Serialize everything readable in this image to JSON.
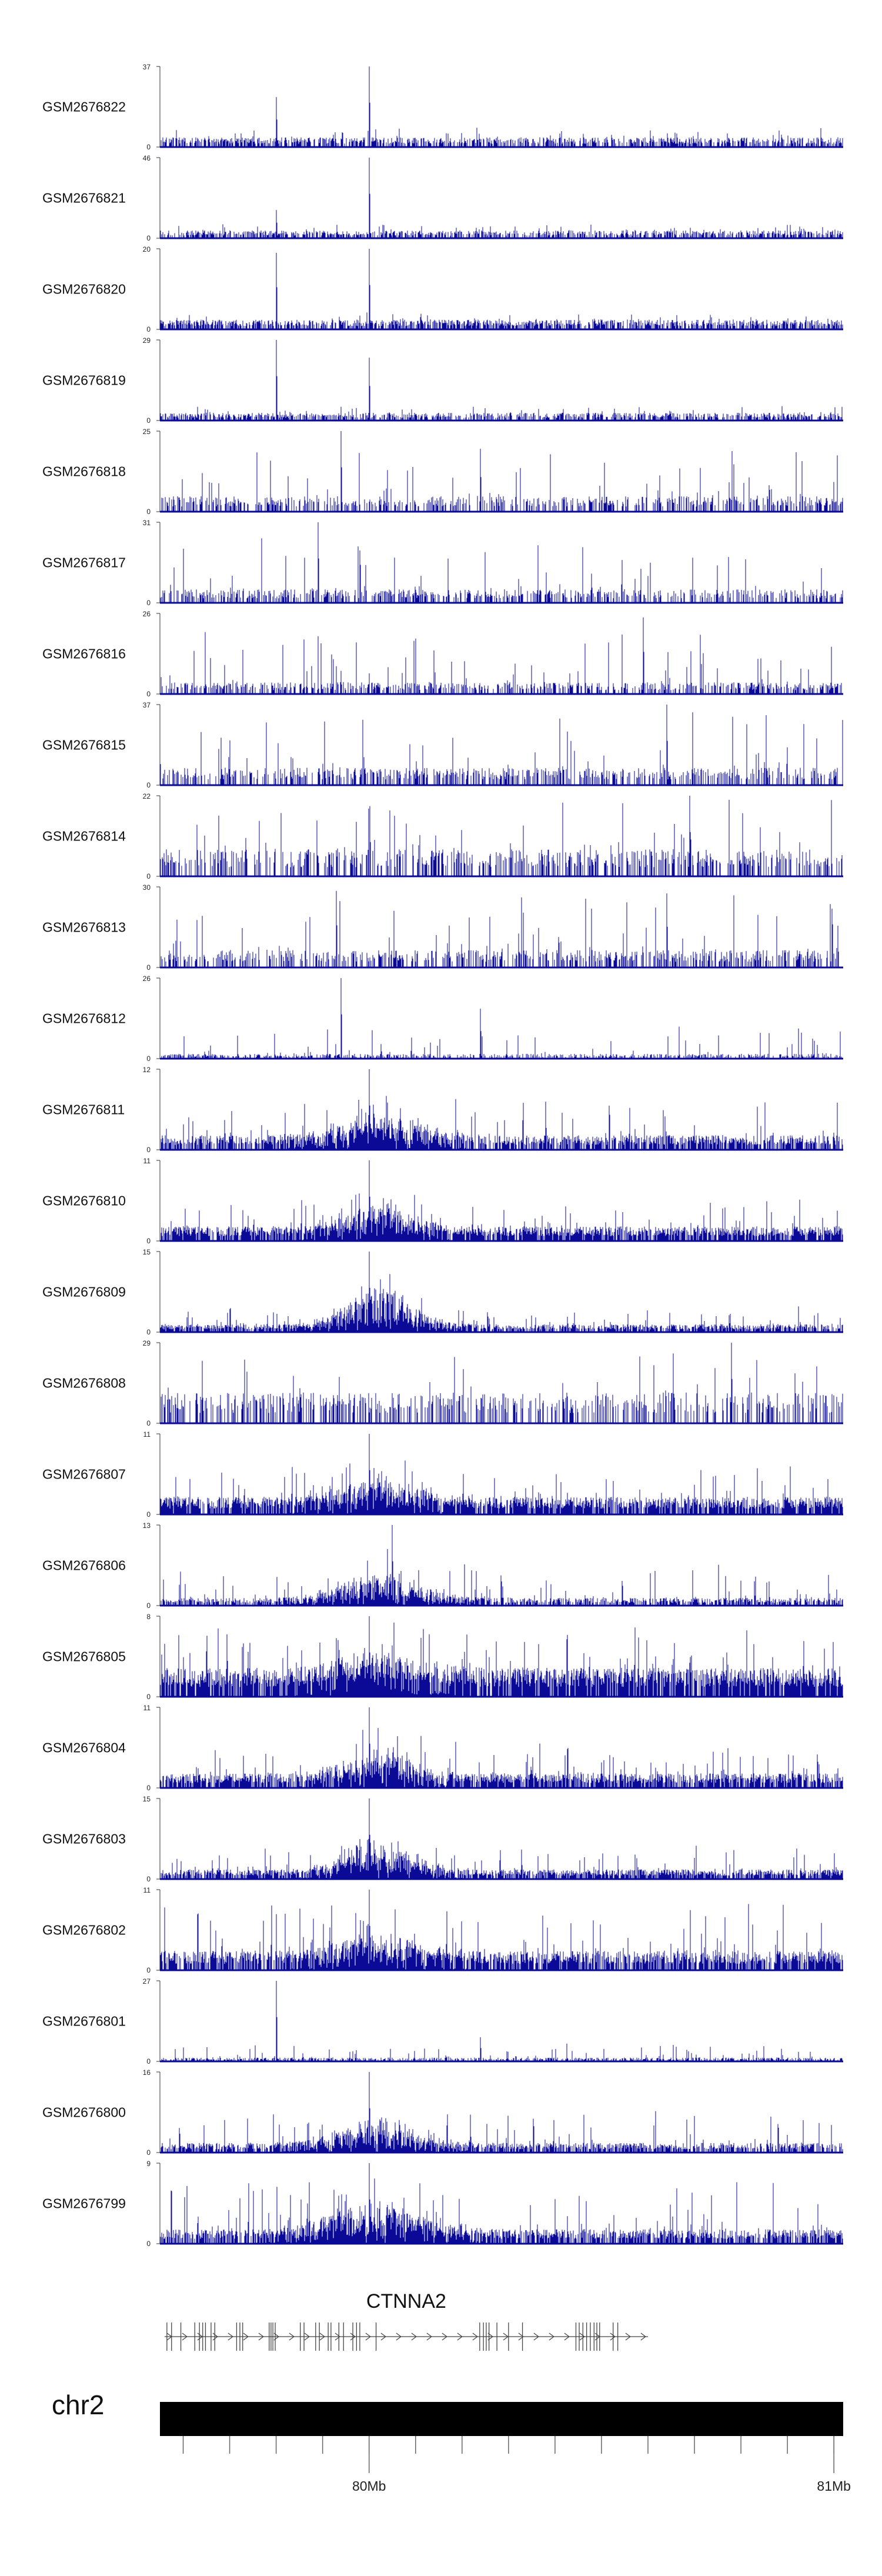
{
  "colors": {
    "signal": "#0a0a96",
    "axis": "#333333",
    "chromosome": "#000000",
    "gene": "#444444"
  },
  "chart_data": {
    "type": "genome-browser-bar-tracks",
    "xlim_mb": [
      79.55,
      81.02
    ],
    "tracks": [
      {
        "name": "GSM2676822",
        "ymax": "37",
        "ymin": "0",
        "baseline": 0.1,
        "noise": 0.12,
        "dense": 0.55,
        "peaks": [
          [
            79.8,
            0.62
          ],
          [
            80.0,
            1.0
          ]
        ]
      },
      {
        "name": "GSM2676821",
        "ymax": "46",
        "ymin": "0",
        "baseline": 0.08,
        "noise": 0.1,
        "dense": 0.55,
        "peaks": [
          [
            79.8,
            0.35
          ],
          [
            80.0,
            1.0
          ]
        ]
      },
      {
        "name": "GSM2676820",
        "ymax": "20",
        "ymin": "0",
        "baseline": 0.1,
        "noise": 0.1,
        "dense": 0.6,
        "peaks": [
          [
            79.8,
            0.95
          ],
          [
            80.0,
            1.0
          ]
        ]
      },
      {
        "name": "GSM2676819",
        "ymax": "29",
        "ymin": "0",
        "baseline": 0.08,
        "noise": 0.1,
        "dense": 0.55,
        "peaks": [
          [
            79.8,
            1.0
          ],
          [
            80.0,
            0.78
          ]
        ]
      },
      {
        "name": "GSM2676818",
        "ymax": "25",
        "ymin": "0",
        "baseline": 0.16,
        "noise": 0.6,
        "dense": 0.4,
        "peaks": [
          [
            79.94,
            1.0
          ],
          [
            80.24,
            0.78
          ]
        ]
      },
      {
        "name": "GSM2676817",
        "ymax": "31",
        "ymin": "0",
        "baseline": 0.14,
        "noise": 0.65,
        "dense": 0.4,
        "peaks": [
          [
            79.89,
            1.0
          ]
        ]
      },
      {
        "name": "GSM2676816",
        "ymax": "26",
        "ymin": "0",
        "baseline": 0.12,
        "noise": 0.65,
        "dense": 0.45,
        "peaks": [
          [
            80.59,
            0.95
          ]
        ]
      },
      {
        "name": "GSM2676815",
        "ymax": "37",
        "ymin": "0",
        "baseline": 0.18,
        "noise": 0.7,
        "dense": 0.4,
        "peaks": [
          [
            80.64,
            1.0
          ]
        ]
      },
      {
        "name": "GSM2676814",
        "ymax": "22",
        "ymin": "0",
        "baseline": 0.28,
        "noise": 0.7,
        "dense": 0.4,
        "peaks": [
          [
            80.69,
            1.0
          ]
        ]
      },
      {
        "name": "GSM2676813",
        "ymax": "30",
        "ymin": "0",
        "baseline": 0.18,
        "noise": 0.7,
        "dense": 0.4,
        "peaks": [
          [
            79.93,
            0.95
          ],
          [
            80.64,
            0.92
          ]
        ]
      },
      {
        "name": "GSM2676812",
        "ymax": "26",
        "ymin": "0",
        "baseline": 0.05,
        "noise": 0.35,
        "dense": 0.4,
        "peaks": [
          [
            79.94,
            1.0
          ],
          [
            80.24,
            0.62
          ]
        ]
      },
      {
        "name": "GSM2676811",
        "ymax": "12",
        "ymin": "0",
        "baseline": 0.15,
        "noise": 0.5,
        "dense": 0.7,
        "peaks": [
          [
            80.0,
            1.0
          ]
        ],
        "bump": [
          80.02,
          0.12,
          0.35
        ]
      },
      {
        "name": "GSM2676810",
        "ymax": "11",
        "ymin": "0",
        "baseline": 0.15,
        "noise": 0.35,
        "dense": 0.8,
        "peaks": [
          [
            80.0,
            1.0
          ]
        ],
        "bump": [
          80.02,
          0.1,
          0.3
        ]
      },
      {
        "name": "GSM2676809",
        "ymax": "15",
        "ymin": "0",
        "baseline": 0.08,
        "noise": 0.25,
        "dense": 0.7,
        "peaks": [
          [
            80.0,
            1.0
          ]
        ],
        "bump": [
          80.02,
          0.1,
          0.5
        ]
      },
      {
        "name": "GSM2676808",
        "ymax": "29",
        "ymin": "0",
        "baseline": 0.32,
        "noise": 0.55,
        "dense": 0.35,
        "peaks": [
          [
            80.78,
            1.0
          ]
        ]
      },
      {
        "name": "GSM2676807",
        "ymax": "11",
        "ymin": "0",
        "baseline": 0.18,
        "noise": 0.4,
        "dense": 0.8,
        "peaks": [
          [
            80.0,
            1.0
          ]
        ],
        "bump": [
          80.02,
          0.12,
          0.25
        ]
      },
      {
        "name": "GSM2676806",
        "ymax": "13",
        "ymin": "0",
        "baseline": 0.08,
        "noise": 0.45,
        "dense": 0.6,
        "peaks": [
          [
            80.05,
            1.0
          ]
        ],
        "bump": [
          80.02,
          0.12,
          0.35
        ]
      },
      {
        "name": "GSM2676805",
        "ymax": "8",
        "ymin": "0",
        "baseline": 0.3,
        "noise": 0.55,
        "dense": 0.85,
        "peaks": [
          [
            80.0,
            1.0
          ]
        ],
        "bump": [
          80.02,
          0.12,
          0.25
        ]
      },
      {
        "name": "GSM2676804",
        "ymax": "11",
        "ymin": "0",
        "baseline": 0.15,
        "noise": 0.4,
        "dense": 0.75,
        "peaks": [
          [
            80.0,
            1.0
          ]
        ],
        "bump": [
          80.02,
          0.1,
          0.35
        ]
      },
      {
        "name": "GSM2676803",
        "ymax": "15",
        "ymin": "0",
        "baseline": 0.1,
        "noise": 0.3,
        "dense": 0.75,
        "peaks": [
          [
            80.0,
            1.0
          ]
        ],
        "bump": [
          80.02,
          0.1,
          0.45
        ]
      },
      {
        "name": "GSM2676802",
        "ymax": "11",
        "ymin": "0",
        "baseline": 0.2,
        "noise": 0.6,
        "dense": 0.75,
        "peaks": [
          [
            80.0,
            1.0
          ]
        ],
        "bump": [
          80.02,
          0.12,
          0.25
        ]
      },
      {
        "name": "GSM2676801",
        "ymax": "27",
        "ymin": "0",
        "baseline": 0.04,
        "noise": 0.18,
        "dense": 0.5,
        "peaks": [
          [
            79.8,
            1.0
          ],
          [
            80.24,
            0.3
          ]
        ]
      },
      {
        "name": "GSM2676800",
        "ymax": "16",
        "ymin": "0",
        "baseline": 0.1,
        "noise": 0.4,
        "dense": 0.65,
        "peaks": [
          [
            80.0,
            1.0
          ]
        ],
        "bump": [
          80.02,
          0.12,
          0.35
        ]
      },
      {
        "name": "GSM2676799",
        "ymax": "9",
        "ymin": "0",
        "baseline": 0.15,
        "noise": 0.6,
        "dense": 0.7,
        "peaks": [
          [
            80.0,
            1.0
          ]
        ],
        "bump": [
          80.02,
          0.14,
          0.4
        ]
      }
    ],
    "gene": {
      "name": "CTNNA2",
      "strand": "+",
      "start_mb": 79.56,
      "end_mb": 80.6,
      "exons_mb": [
        79.565,
        79.575,
        79.595,
        79.625,
        79.635,
        79.642,
        79.648,
        79.66,
        79.668,
        79.715,
        79.722,
        79.728,
        79.785,
        79.789,
        79.793,
        79.798,
        79.852,
        79.86,
        79.885,
        79.893,
        79.912,
        79.918,
        79.935,
        79.945,
        79.965,
        79.973,
        79.98,
        80.015,
        80.238,
        80.246,
        80.252,
        80.258,
        80.275,
        80.3,
        80.33,
        80.445,
        80.452,
        80.46,
        80.468,
        80.476,
        80.484,
        80.49,
        80.496,
        80.525,
        80.535
      ]
    },
    "chromosome": {
      "name": "chr2",
      "minor_ticks_mb": [
        79.6,
        79.7,
        79.8,
        79.9,
        80.0,
        80.1,
        80.2,
        80.3,
        80.4,
        80.5,
        80.6,
        80.7,
        80.8,
        80.9,
        81.0
      ],
      "labels": [
        {
          "mb": 80.0,
          "text": "80Mb"
        },
        {
          "mb": 81.0,
          "text": "81Mb"
        }
      ]
    }
  }
}
